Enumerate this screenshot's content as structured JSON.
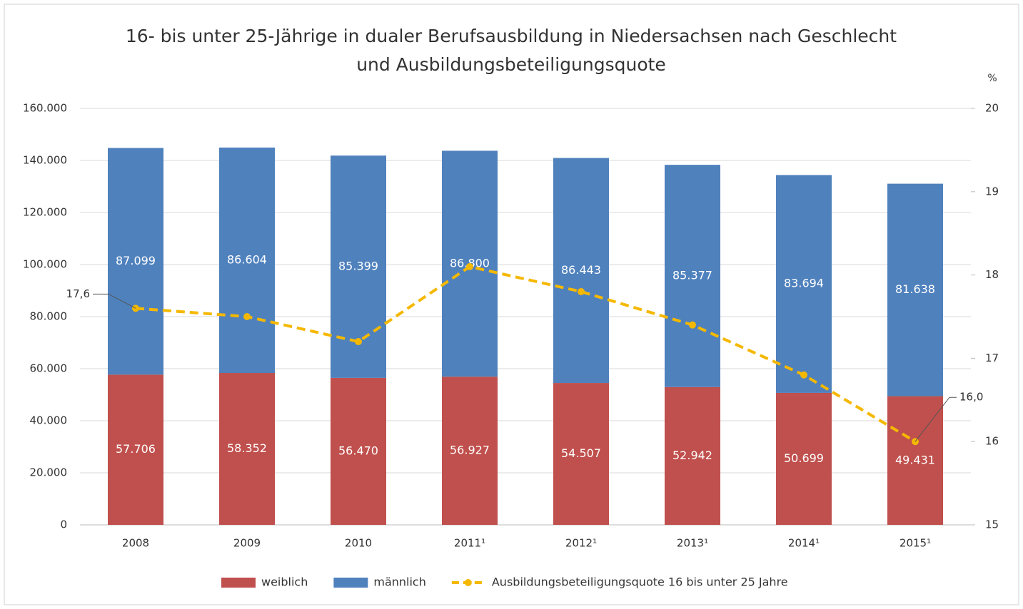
{
  "chart_data": {
    "type": "bar",
    "title": [
      "16- bis unter 25-Jährige in dualer Berufsausbildung in Niedersachsen nach Geschlecht",
      "und Ausbildungsbeteiligungsquote"
    ],
    "y2_unit": "%",
    "categories": [
      "2008",
      "2009",
      "2010",
      "2011¹",
      "2012¹",
      "2013¹",
      "2014¹",
      "2015¹"
    ],
    "series": [
      {
        "name": "weiblich",
        "color": "#c0504d",
        "values": [
          57706,
          58352,
          56470,
          56927,
          54507,
          52942,
          50699,
          49431
        ],
        "value_labels": [
          "57.706",
          "58.352",
          "56.470",
          "56.927",
          "54.507",
          "52.942",
          "50.699",
          "49.431"
        ]
      },
      {
        "name": "männlich",
        "color": "#4f81bd",
        "values": [
          87099,
          86604,
          85399,
          86800,
          86443,
          85377,
          83694,
          81638
        ],
        "value_labels": [
          "87.099",
          "86.604",
          "85.399",
          "86.800",
          "86.443",
          "85.377",
          "83.694",
          "81.638"
        ]
      },
      {
        "name": "Ausbildungsbeteiligungsquote 16 bis unter 25 Jahre",
        "type": "line",
        "axis": "y2",
        "color": "#f5b800",
        "dashed": true,
        "values": [
          17.6,
          17.5,
          17.2,
          18.1,
          17.8,
          17.4,
          16.8,
          16.0
        ],
        "value_labels": [
          "17,6",
          null,
          null,
          null,
          null,
          null,
          null,
          "16,0"
        ]
      }
    ],
    "ylim": [
      0,
      160000
    ],
    "yticks": [
      0,
      {
        "value": 20000,
        "label": "20.000"
      },
      {
        "value": 40000,
        "label": "40.000"
      },
      {
        "value": 60000,
        "label": "60.000"
      },
      {
        "value": 80000,
        "label": "80.000"
      },
      {
        "value": 100000,
        "label": "100.000"
      },
      {
        "value": 120000,
        "label": "120.000"
      },
      {
        "value": 140000,
        "label": "140.000"
      },
      {
        "value": 160000,
        "label": "160.000"
      }
    ],
    "y2lim": [
      15,
      20
    ],
    "y2ticks": [
      15,
      16,
      17,
      18,
      19,
      20
    ],
    "grid": true,
    "legend": "bottom",
    "stacked": true
  }
}
